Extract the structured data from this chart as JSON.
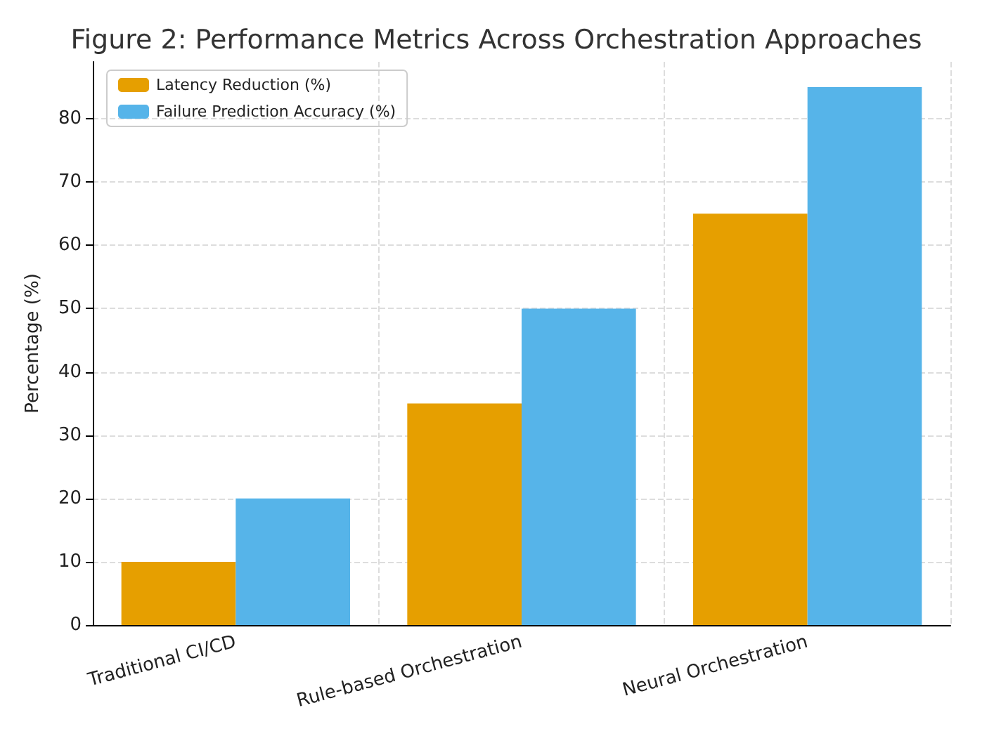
{
  "chart_data": {
    "type": "bar",
    "title": "Figure 2: Performance Metrics Across Orchestration Approaches",
    "ylabel": "Percentage (%)",
    "categories": [
      "Traditional CI/CD",
      "Rule-based Orchestration",
      "Neural Orchestration"
    ],
    "series": [
      {
        "name": "Latency Reduction (%)",
        "color": "#e69f00",
        "values": [
          10,
          35,
          65
        ]
      },
      {
        "name": "Failure Prediction Accuracy (%)",
        "color": "#56b4e9",
        "values": [
          20,
          50,
          85
        ]
      }
    ],
    "ylim": [
      0,
      89
    ],
    "yticks": [
      0,
      10,
      20,
      30,
      40,
      50,
      60,
      70,
      80
    ],
    "grid": true,
    "legend": "top left"
  }
}
